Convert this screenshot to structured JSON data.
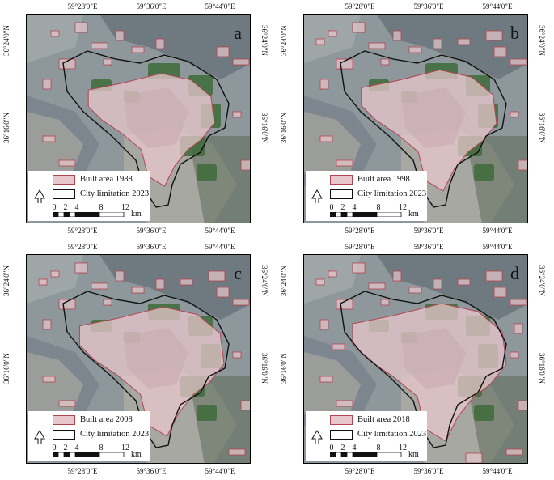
{
  "ticks": {
    "lon": [
      "59°28'0\"E",
      "59°36'0\"E",
      "59°44'0\"E"
    ],
    "lat": [
      "36°24'0\"N",
      "36°16'0\"N"
    ]
  },
  "legend": {
    "city_label": "City limitation 2023"
  },
  "scale": {
    "marks": [
      "0",
      "2",
      "4",
      "8",
      "12"
    ],
    "unit": "km"
  },
  "panels": [
    {
      "letter": "a",
      "built_label": "Built area 1988",
      "built_level": 0.55
    },
    {
      "letter": "b",
      "built_label": "Built area 1998",
      "built_level": 0.7
    },
    {
      "letter": "c",
      "built_label": "Built area 2008",
      "built_level": 0.85
    },
    {
      "letter": "d",
      "built_label": "Built area 2018",
      "built_level": 1.0
    }
  ],
  "colors": {
    "built_fill": "#e8c7cc",
    "built_stroke": "#b2454f",
    "vegetation": "#3d6b3a",
    "terrain": "#8f9aa2"
  }
}
